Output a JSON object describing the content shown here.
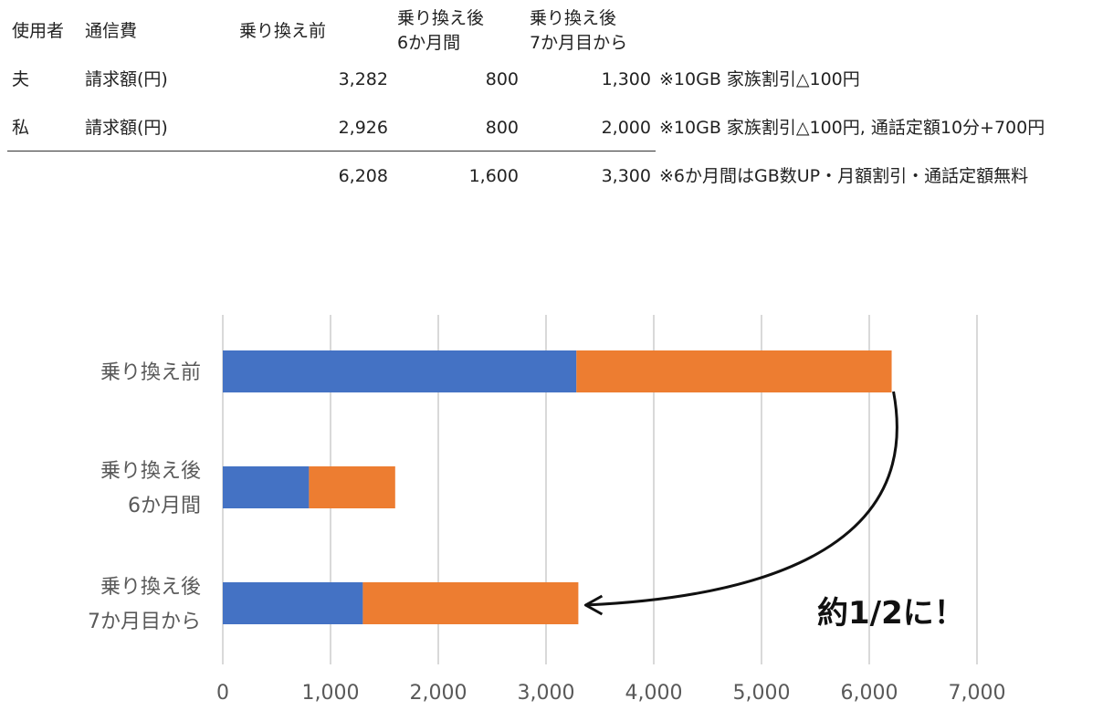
{
  "table": {
    "headers": {
      "user": "使用者",
      "type": "通信費",
      "before": "乗り換え前",
      "after6_l1": "乗り換え後",
      "after6_l2": "6か月間",
      "after7_l1": "乗り換え後",
      "after7_l2": "7か月目から"
    },
    "rows": [
      {
        "user": "夫",
        "type": "請求額(円)",
        "before": "3,282",
        "after6": "800",
        "after7": "1,300",
        "note": "※10GB 家族割引△100円"
      },
      {
        "user": "私",
        "type": "請求額(円)",
        "before": "2,926",
        "after6": "800",
        "after7": "2,000",
        "note": "※10GB 家族割引△100円, 通話定額10分+700円"
      }
    ],
    "totals": {
      "before": "6,208",
      "after6": "1,600",
      "after7": "3,300",
      "note": "※6か月間はGB数UP・月額割引・通話定額無料"
    }
  },
  "chart_data": {
    "type": "bar",
    "orientation": "horizontal",
    "stacked": true,
    "categories": [
      [
        "乗り換え前"
      ],
      [
        "乗り換え後",
        "6か月間"
      ],
      [
        "乗り換え後",
        "7か月目から"
      ]
    ],
    "series": [
      {
        "values": [
          3282,
          800,
          1300
        ],
        "color": "#4472C4"
      },
      {
        "values": [
          2926,
          800,
          2000
        ],
        "color": "#ED7D31"
      }
    ],
    "xlim": [
      0,
      7000
    ],
    "xticks": [
      0,
      1000,
      2000,
      3000,
      4000,
      5000,
      6000,
      7000
    ],
    "xtick_labels": [
      "0",
      "1,000",
      "2,000",
      "3,000",
      "4,000",
      "5,000",
      "6,000",
      "7,000"
    ],
    "grid": "vertical",
    "legend": "none",
    "annotation": {
      "text": "約1/2に！",
      "arrow_from_category": 0,
      "arrow_to_category": 2
    }
  }
}
